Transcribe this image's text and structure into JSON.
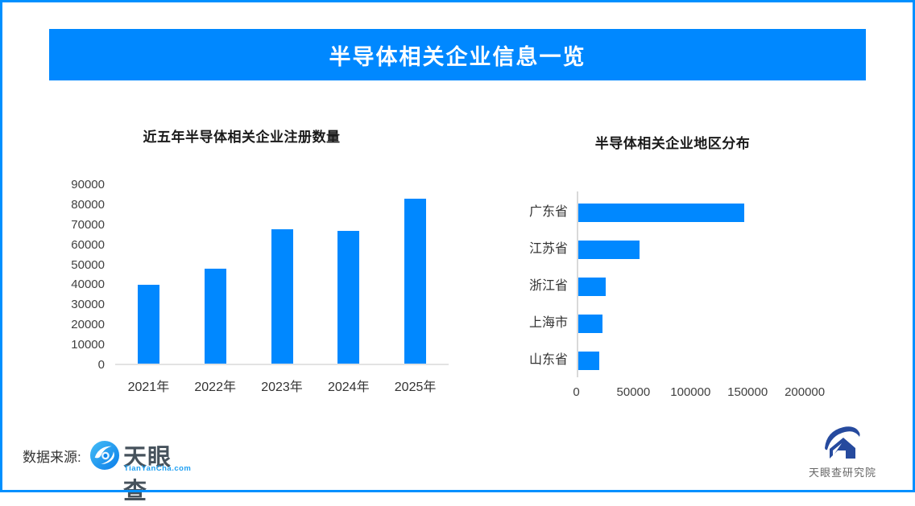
{
  "banner": {
    "title": "半导体相关企业信息一览"
  },
  "footer": {
    "source_label": "数据来源:",
    "tianyancha_logo": {
      "name": "天眼查",
      "domain": "TianYanCha.com"
    },
    "research_logo": {
      "name": "天眼查研究院"
    }
  },
  "colors": {
    "accent": "#0088ff",
    "border": "#0090ff",
    "axis_line": "#d9d9d9",
    "text_dark": "#333333"
  },
  "chart_data": [
    {
      "type": "bar",
      "orientation": "vertical",
      "title": "近五年半导体相关企业注册数量",
      "categories": [
        "2021年",
        "2022年",
        "2023年",
        "2024年",
        "2025年"
      ],
      "values": [
        39500,
        47500,
        67000,
        66500,
        82500
      ],
      "xlabel": "",
      "ylabel": "",
      "ylim": [
        0,
        90000
      ],
      "ytick_step": 10000,
      "grid": false,
      "bar_color": "#0088ff"
    },
    {
      "type": "bar",
      "orientation": "horizontal",
      "title": "半导体相关企业地区分布",
      "categories": [
        "广东省",
        "江苏省",
        "浙江省",
        "上海市",
        "山东省"
      ],
      "values": [
        145000,
        53500,
        24000,
        21000,
        18500
      ],
      "xlabel": "",
      "ylabel": "",
      "xlim": [
        0,
        245000
      ],
      "xticks": [
        0,
        50000,
        100000,
        150000,
        200000
      ],
      "grid": false,
      "bar_color": "#0088ff"
    }
  ]
}
